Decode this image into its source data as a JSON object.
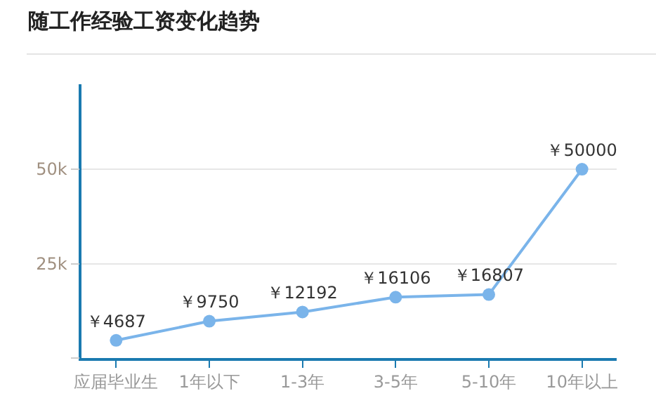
{
  "chart_data": {
    "type": "line",
    "title": "随工作经验工资变化趋势",
    "categories": [
      "应届毕业生",
      "1年以下",
      "1-3年",
      "3-5年",
      "5-10年",
      "10年以上"
    ],
    "series": [
      {
        "color": "#7ab4ea",
        "values": [
          4687,
          9750,
          12192,
          16106,
          16807,
          50000
        ],
        "value_labels": [
          "￥4687",
          "￥9750",
          "￥12192",
          "￥16106",
          "￥16807",
          "￥50000"
        ]
      }
    ],
    "ylim": [
      0,
      72500
    ],
    "yticks": [
      {
        "value": 0,
        "label": null
      },
      {
        "value": 25000,
        "label": "25k"
      },
      {
        "value": 50000,
        "label": "50k"
      }
    ],
    "grid": "y",
    "marker": "circle",
    "line_style": "solid"
  }
}
